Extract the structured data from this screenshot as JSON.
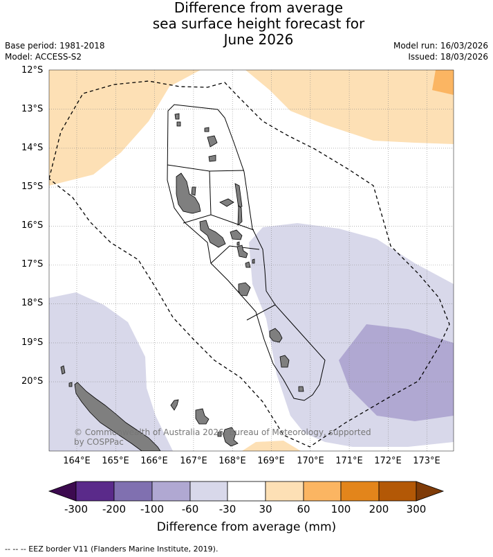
{
  "title_lines": [
    "Difference from average",
    "sea surface height forecast for",
    "June 2026"
  ],
  "base_period": "Base period: 1981-2018",
  "model": "Model: ACCESS-S2",
  "model_run": "Model run: 16/03/2026",
  "issued": "Issued: 18/03/2026",
  "copyright": "© Commonwealth of Australia 2026, Bureau of Meteorology, supported",
  "copyright_2": "by COSPPac",
  "lat_labels": [
    "12°S",
    "13°S",
    "14°S",
    "15°S",
    "16°S",
    "17°S",
    "18°S",
    "19°S",
    "20°S"
  ],
  "lon_labels": [
    "164°E",
    "165°E",
    "166°E",
    "167°E",
    "168°E",
    "169°E",
    "170°E",
    "171°E",
    "172°E",
    "173°E"
  ],
  "colorbar": {
    "ticks": [
      "-300",
      "-200",
      "-100",
      "-60",
      "-30",
      "30",
      "60",
      "100",
      "200",
      "300"
    ],
    "colors": [
      "#3c0a4f",
      "#5a2a8a",
      "#8070b0",
      "#b0a8d2",
      "#d8d8ea",
      "#ffffff",
      "#fde0b5",
      "#fbb562",
      "#e3851b",
      "#b35806",
      "#7f3b08"
    ],
    "title": "Difference from average (mm)"
  },
  "legend_footer": "--  --  -- EEZ border V11 (Flanders Marine Institute, 2019)."
}
